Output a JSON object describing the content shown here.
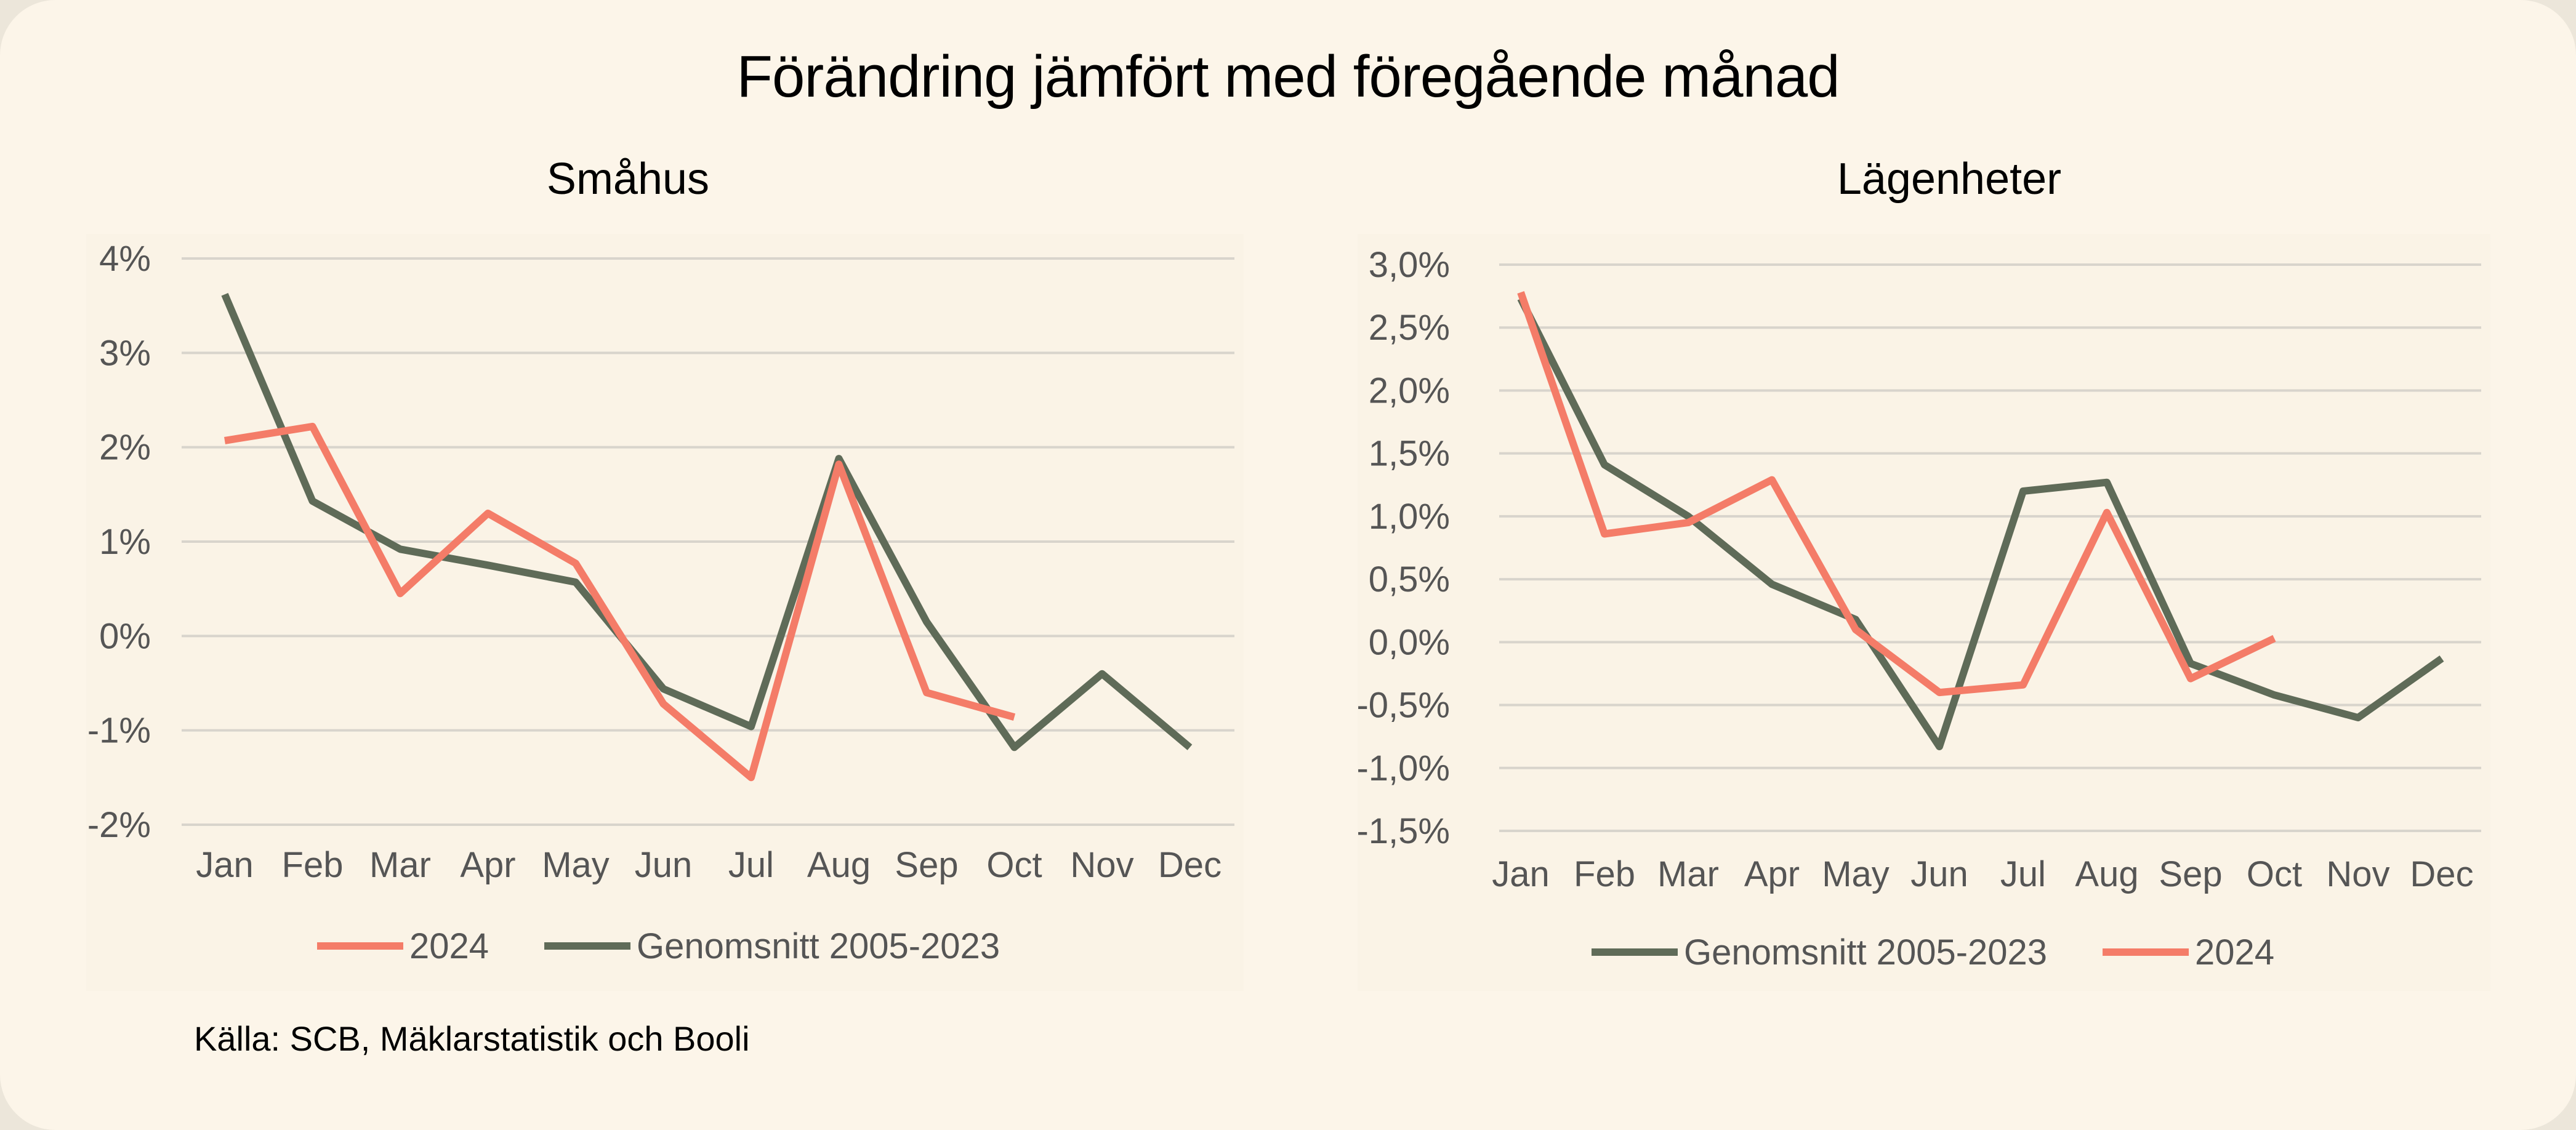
{
  "title": "Förändring jämfört med föregående månad",
  "source": "Källa: SCB, Mäklarstatistik och Booli",
  "colors": {
    "series_2024": "#f47c68",
    "series_avg": "#5f6b58",
    "grid": "#d8d4cc",
    "tick_text": "#555555"
  },
  "chart_data": [
    {
      "type": "line",
      "title": "Småhus",
      "categories": [
        "Jan",
        "Feb",
        "Mar",
        "Apr",
        "May",
        "Jun",
        "Jul",
        "Aug",
        "Sep",
        "Oct",
        "Nov",
        "Dec"
      ],
      "ylim": [
        -2,
        4
      ],
      "yticks": [
        4,
        3,
        2,
        1,
        0,
        -1,
        -2
      ],
      "yticklabels": [
        "4%",
        "3%",
        "2%",
        "1%",
        "0%",
        "-1%",
        "-2%"
      ],
      "grid": true,
      "legend_position": "bottom",
      "legend_order": [
        "2024",
        "Genomsnitt 2005-2023"
      ],
      "series": [
        {
          "name": "2024",
          "color_key": "series_2024",
          "values": [
            2.07,
            2.22,
            0.45,
            1.3,
            0.77,
            -0.72,
            -1.5,
            1.82,
            -0.6,
            -0.86,
            null,
            null
          ]
        },
        {
          "name": "Genomsnitt 2005-2023",
          "color_key": "series_avg",
          "values": [
            3.62,
            1.43,
            0.92,
            0.75,
            0.57,
            -0.56,
            -0.96,
            1.88,
            0.15,
            -1.18,
            -0.4,
            -1.18
          ]
        }
      ]
    },
    {
      "type": "line",
      "title": "Lägenheter",
      "categories": [
        "Jan",
        "Feb",
        "Mar",
        "Apr",
        "May",
        "Jun",
        "Jul",
        "Aug",
        "Sep",
        "Oct",
        "Nov",
        "Dec"
      ],
      "ylim": [
        -1.5,
        3.0
      ],
      "yticks": [
        3.0,
        2.5,
        2.0,
        1.5,
        1.0,
        0.5,
        0.0,
        -0.5,
        -1.0,
        -1.5
      ],
      "yticklabels": [
        "3,0%",
        "2,5%",
        "2,0%",
        "1,5%",
        "1,0%",
        "0,5%",
        "0,0%",
        "-0,5%",
        "-1,0%",
        "-1,5%"
      ],
      "grid": true,
      "legend_position": "bottom",
      "legend_order": [
        "Genomsnitt 2005-2023",
        "2024"
      ],
      "series": [
        {
          "name": "Genomsnitt 2005-2023",
          "color_key": "series_avg",
          "values": [
            2.73,
            1.41,
            1.0,
            0.46,
            0.18,
            -0.83,
            1.2,
            1.27,
            -0.17,
            -0.42,
            -0.6,
            -0.13
          ]
        },
        {
          "name": "2024",
          "color_key": "series_2024",
          "values": [
            2.78,
            0.86,
            0.95,
            1.29,
            0.1,
            -0.4,
            -0.34,
            1.03,
            -0.29,
            0.03,
            null,
            null
          ]
        }
      ]
    }
  ]
}
